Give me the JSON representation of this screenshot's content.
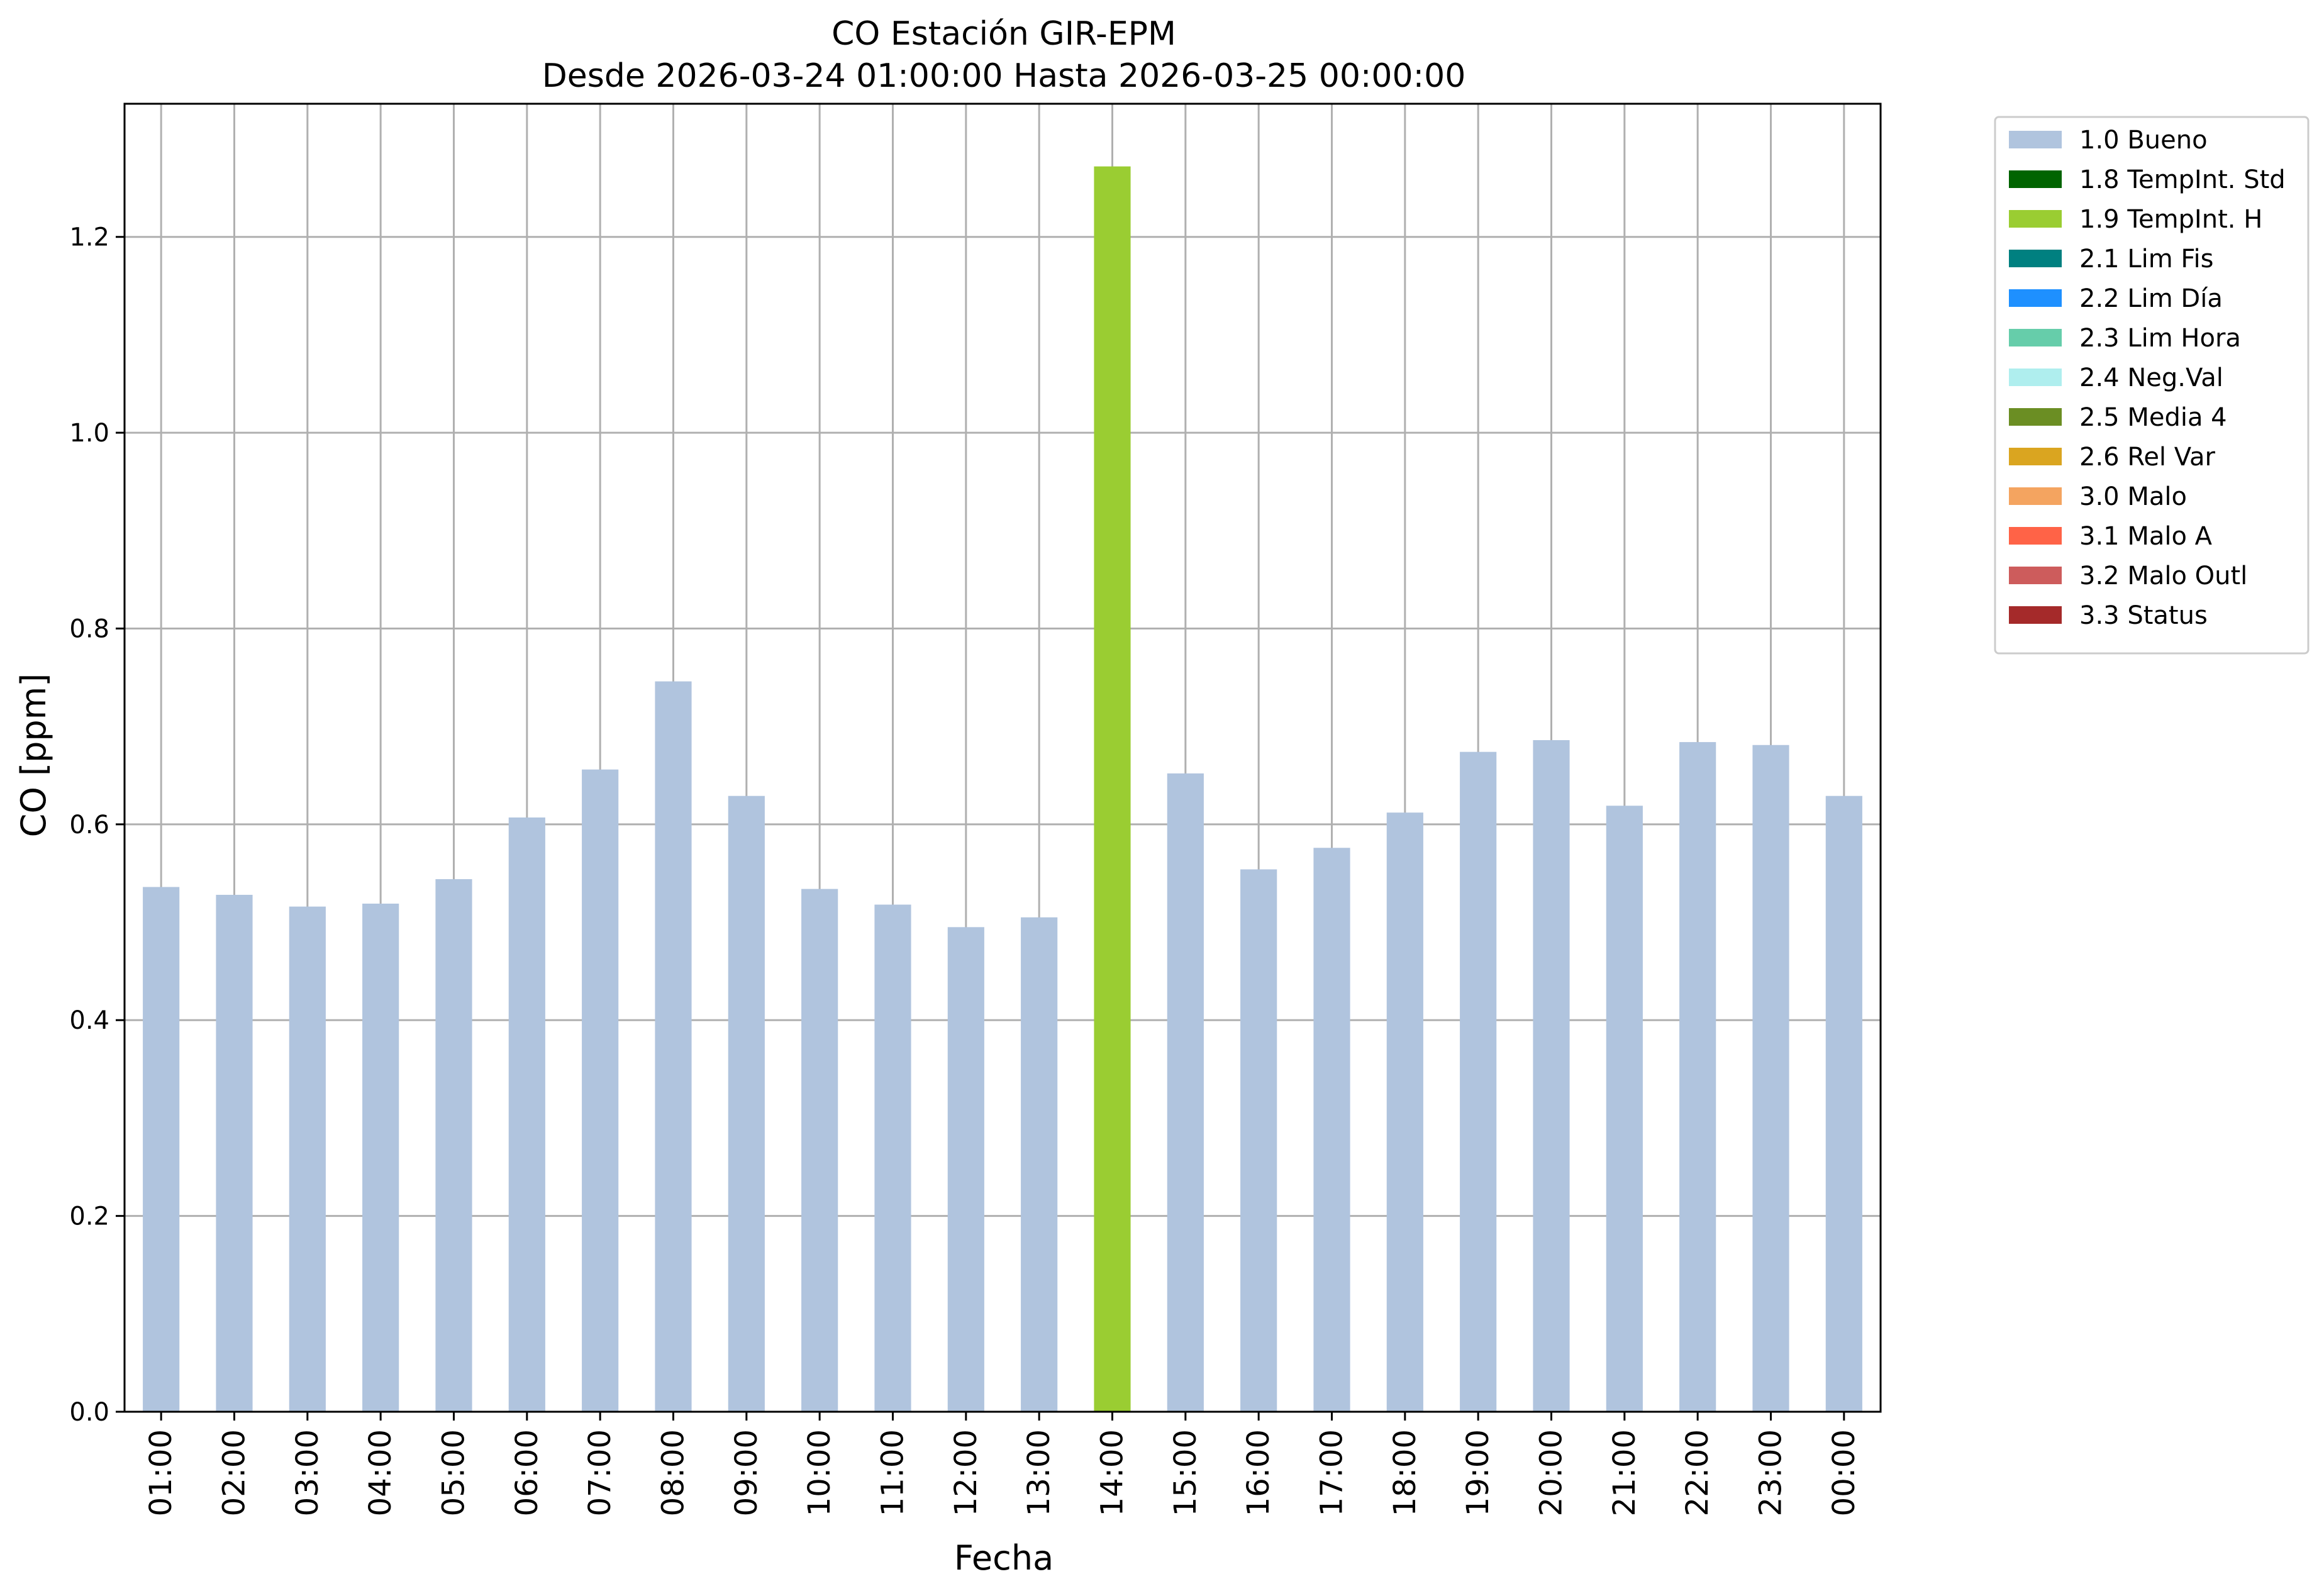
{
  "chart_data": {
    "type": "bar",
    "title": "CO Estación GIR-EPM",
    "subtitle": "Desde 2026-03-24 01:00:00 Hasta 2026-03-25 00:00:00",
    "xlabel": "Fecha",
    "ylabel": "CO [ppm]",
    "ylim": [
      0,
      1.336
    ],
    "yticks": [
      0.0,
      0.2,
      0.4,
      0.6,
      0.8,
      1.0,
      1.2
    ],
    "ytick_labels": [
      "0.0",
      "0.2",
      "0.4",
      "0.6",
      "0.8",
      "1.0",
      "1.2"
    ],
    "grid": true,
    "legend_position": "outside-top-right",
    "categories": [
      "01:00",
      "02:00",
      "03:00",
      "04:00",
      "05:00",
      "06:00",
      "07:00",
      "08:00",
      "09:00",
      "10:00",
      "11:00",
      "12:00",
      "13:00",
      "14:00",
      "15:00",
      "16:00",
      "17:00",
      "18:00",
      "19:00",
      "20:00",
      "21:00",
      "22:00",
      "23:00",
      "00:00"
    ],
    "values": [
      0.536,
      0.528,
      0.516,
      0.519,
      0.544,
      0.607,
      0.656,
      0.746,
      0.629,
      0.534,
      0.518,
      0.495,
      0.505,
      1.272,
      0.652,
      0.554,
      0.576,
      0.612,
      0.674,
      0.686,
      0.619,
      0.684,
      0.681,
      0.629
    ],
    "bar_flags": [
      "1.0 Bueno",
      "1.0 Bueno",
      "1.0 Bueno",
      "1.0 Bueno",
      "1.0 Bueno",
      "1.0 Bueno",
      "1.0 Bueno",
      "1.0 Bueno",
      "1.0 Bueno",
      "1.0 Bueno",
      "1.0 Bueno",
      "1.0 Bueno",
      "1.0 Bueno",
      "1.9 TempInt. H",
      "1.0 Bueno",
      "1.0 Bueno",
      "1.0 Bueno",
      "1.0 Bueno",
      "1.0 Bueno",
      "1.0 Bueno",
      "1.0 Bueno",
      "1.0 Bueno",
      "1.0 Bueno",
      "1.0 Bueno"
    ],
    "legend": [
      {
        "label": "1.0 Bueno",
        "color": "#b0c4de"
      },
      {
        "label": "1.8 TempInt. Std",
        "color": "#006400"
      },
      {
        "label": "1.9 TempInt. H",
        "color": "#9acd32"
      },
      {
        "label": "2.1 Lim Fis",
        "color": "#008080"
      },
      {
        "label": "2.2 Lim Día",
        "color": "#1e90ff"
      },
      {
        "label": "2.3 Lim Hora",
        "color": "#66cdaa"
      },
      {
        "label": "2.4 Neg.Val",
        "color": "#afeeee"
      },
      {
        "label": "2.5 Media 4",
        "color": "#6b8e23"
      },
      {
        "label": "2.6 Rel Var",
        "color": "#daa520"
      },
      {
        "label": "3.0 Malo",
        "color": "#f4a460"
      },
      {
        "label": "3.1 Malo A",
        "color": "#ff6347"
      },
      {
        "label": "3.2 Malo Outl",
        "color": "#cd5c5c"
      },
      {
        "label": "3.3 Status",
        "color": "#a52a2a"
      }
    ]
  }
}
